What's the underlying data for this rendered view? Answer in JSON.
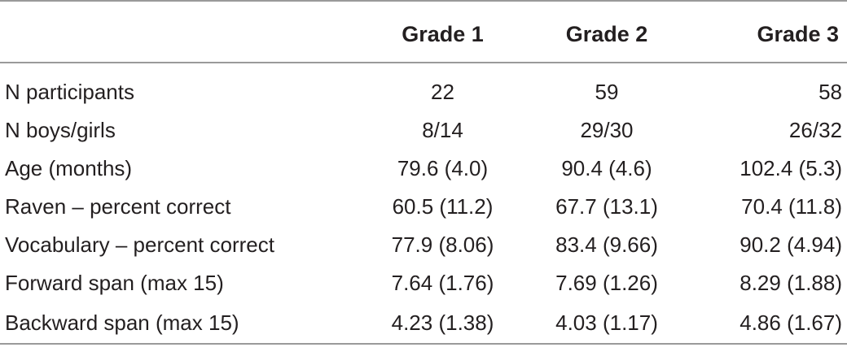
{
  "table": {
    "headers": [
      "",
      "Grade 1",
      "Grade 2",
      "Grade 3"
    ],
    "rows": [
      [
        "N participants",
        "22",
        "59",
        "58"
      ],
      [
        "N boys/girls",
        "8/14",
        "29/30",
        "26/32"
      ],
      [
        "Age (months)",
        "79.6 (4.0)",
        "90.4 (4.6)",
        "102.4 (5.3)"
      ],
      [
        "Raven – percent correct",
        "60.5 (11.2)",
        "67.7 (13.1)",
        "70.4 (11.8)"
      ],
      [
        "Vocabulary – percent correct",
        "77.9 (8.06)",
        "83.4 (9.66)",
        "90.2 (4.94)"
      ],
      [
        "Forward span (max 15)",
        "7.64 (1.76)",
        "7.69 (1.26)",
        "8.29 (1.88)"
      ],
      [
        "Backward span (max 15)",
        "4.23 (1.38)",
        "4.03 (1.17)",
        "4.86 (1.67)"
      ]
    ]
  }
}
